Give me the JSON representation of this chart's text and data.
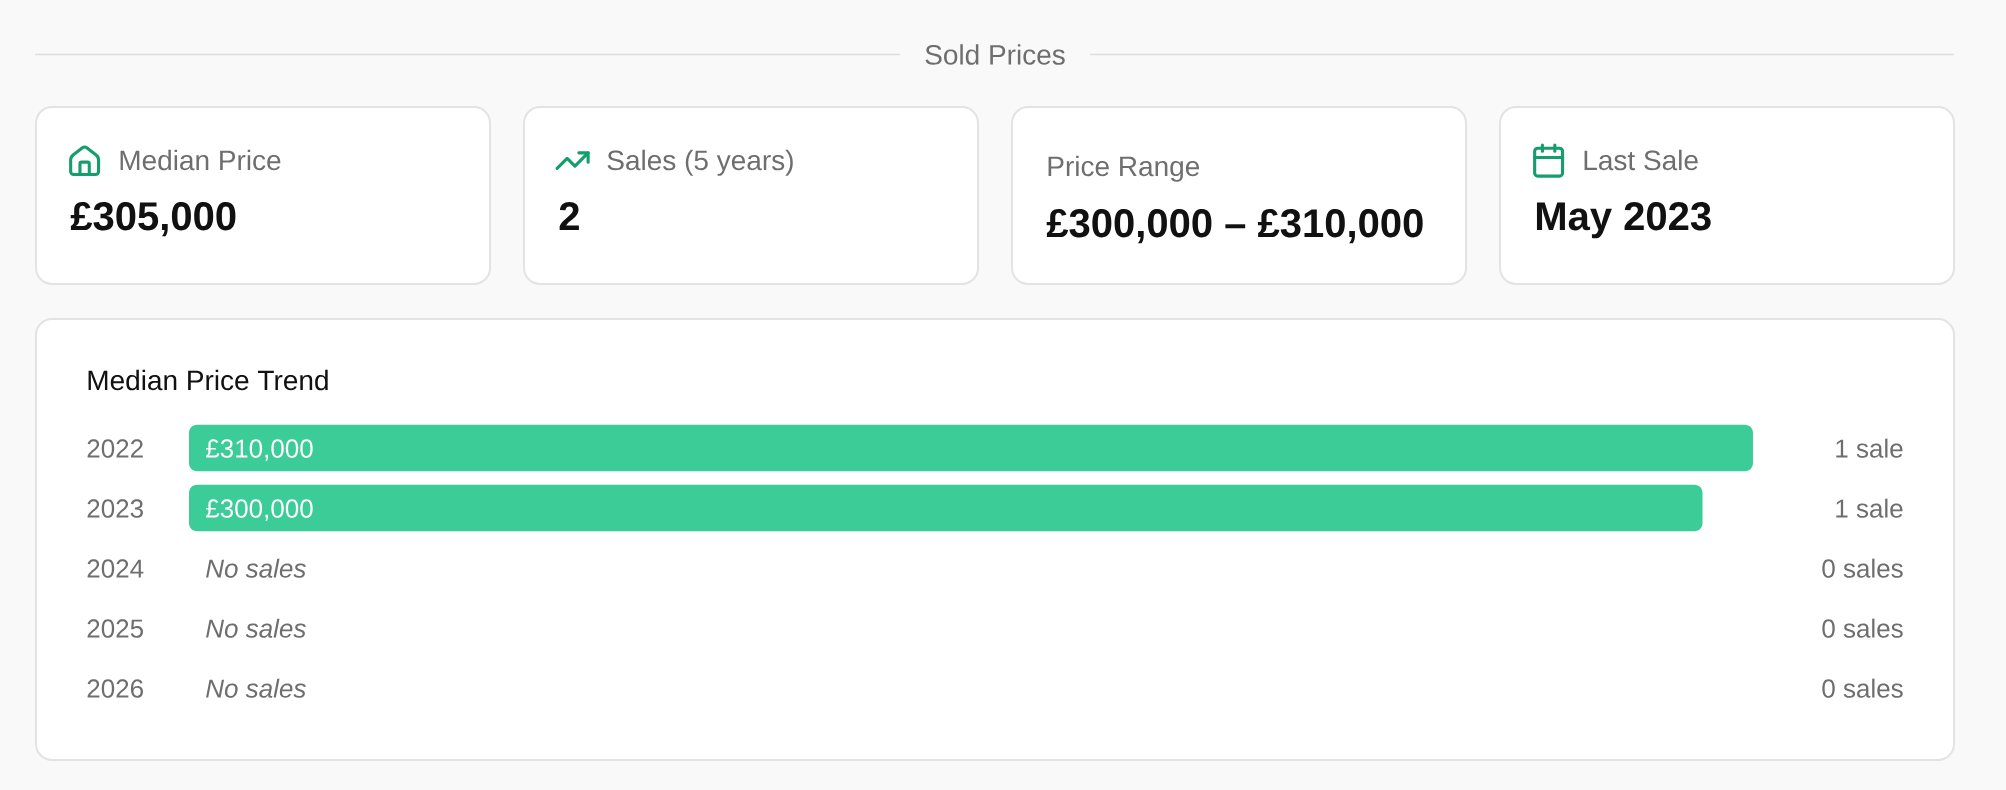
{
  "chart_data": [
    {
      "type": "other",
      "title": "Sold Prices",
      "annotations": [
        "Median Price",
        "£305,000",
        "Sales (5 years)",
        "2",
        "Price Range",
        "£300,000 – £310,000",
        "Last Sale",
        "May 2023"
      ]
    },
    {
      "type": "bar",
      "orientation": "horizontal",
      "title": "Median Price Trend",
      "categories": [
        "2022",
        "2023",
        "2024",
        "2025",
        "2026"
      ],
      "values": [
        310000,
        300000,
        null,
        null,
        null
      ],
      "color": "#3bcc98",
      "value_labels": [
        "£310,000",
        "£300,000",
        "No sales",
        "No sales",
        "No sales"
      ],
      "xlim": [
        0,
        310000
      ],
      "tick_labels": "y",
      "annotations": [
        "1 sale",
        "1 sale",
        "0 sales",
        "0 sales",
        "0 sales"
      ]
    }
  ]
}
